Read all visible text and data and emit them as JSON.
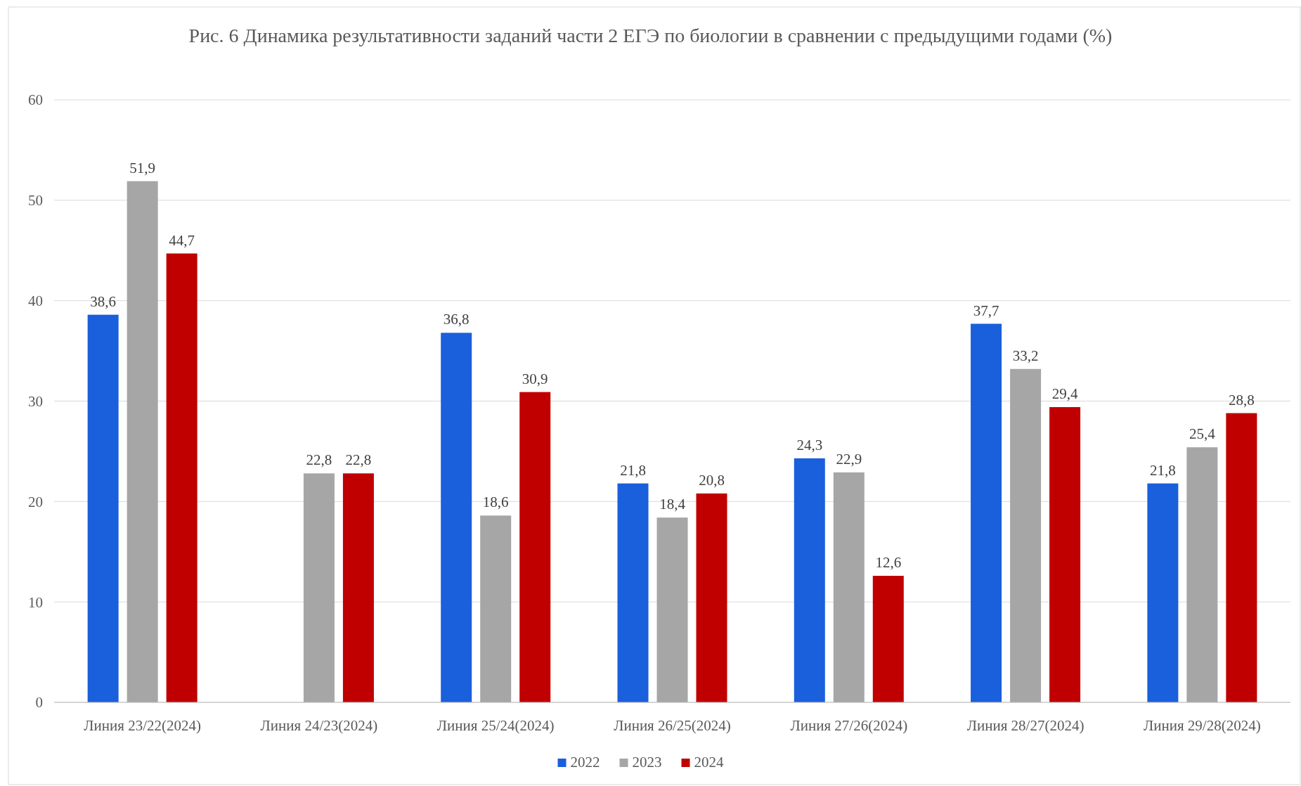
{
  "chart_data": {
    "type": "bar",
    "title": "Рис. 6 Динамика результативности заданий части 2 ЕГЭ по биологии в сравнении с предыдущими годами (%)",
    "categories": [
      "Линия 23/22(2024)",
      "Линия 24/23(2024)",
      "Линия 25/24(2024)",
      "Линия 26/25(2024)",
      "Линия 27/26(2024)",
      "Линия 28/27(2024)",
      "Линия 29/28(2024)"
    ],
    "series": [
      {
        "name": "2022",
        "color": "#1a5fdc",
        "values": [
          38.6,
          null,
          36.8,
          21.8,
          24.3,
          37.7,
          21.8
        ],
        "value_labels": [
          "38,6",
          null,
          "36,8",
          "21,8",
          "24,3",
          "37,7",
          "21,8"
        ]
      },
      {
        "name": "2023",
        "color": "#a6a6a6",
        "values": [
          51.9,
          22.8,
          18.6,
          18.4,
          22.9,
          33.2,
          25.4
        ],
        "value_labels": [
          "51,9",
          "22,8",
          "18,6",
          "18,4",
          "22,9",
          "33,2",
          "25,4"
        ]
      },
      {
        "name": "2024",
        "color": "#c00000",
        "values": [
          44.7,
          22.8,
          30.9,
          20.8,
          12.6,
          29.4,
          28.8
        ],
        "value_labels": [
          "44,7",
          "22,8",
          "30,9",
          "20,8",
          "12,6",
          "29,4",
          "28,8"
        ]
      }
    ],
    "ylim": [
      0,
      60
    ],
    "yticks": [
      0,
      10,
      20,
      30,
      40,
      50,
      60
    ],
    "grid": "y",
    "legend": "bottom"
  }
}
